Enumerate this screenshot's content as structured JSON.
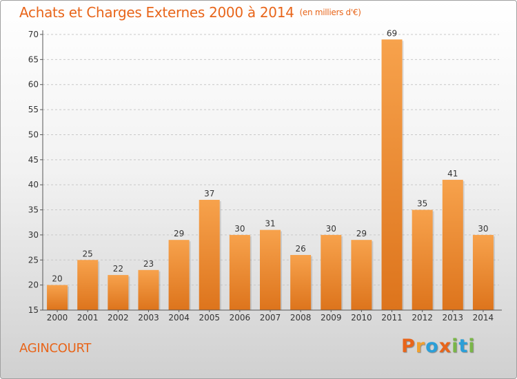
{
  "chart_data": {
    "type": "bar",
    "title": "Achats et Charges Externes 2000 à 2014",
    "unit_note": "(en milliers d'€)",
    "location": "AGINCOURT",
    "categories": [
      "2000",
      "2001",
      "2002",
      "2003",
      "2004",
      "2005",
      "2006",
      "2007",
      "2008",
      "2009",
      "2010",
      "2011",
      "2012",
      "2013",
      "2014"
    ],
    "values": [
      20,
      25,
      22,
      23,
      29,
      37,
      30,
      31,
      26,
      30,
      29,
      69,
      35,
      41,
      30
    ],
    "ylim": [
      15,
      70
    ],
    "yticks": [
      15,
      20,
      25,
      30,
      35,
      40,
      45,
      50,
      55,
      60,
      65,
      70
    ],
    "grid": "horizontal-dashed",
    "legend": "none",
    "colors": {
      "bar_top": "#f7a24c",
      "bar_bottom": "#dd741c",
      "text_accent": "#e8651a"
    }
  },
  "brand": {
    "letters": [
      "P",
      "r",
      "o",
      "x",
      "i",
      "t",
      "i"
    ],
    "colors": [
      "#e8651a",
      "#f0a030",
      "#2b9fd8",
      "#e8651a",
      "#7ab648",
      "#2b9fd8",
      "#7ab648"
    ]
  }
}
